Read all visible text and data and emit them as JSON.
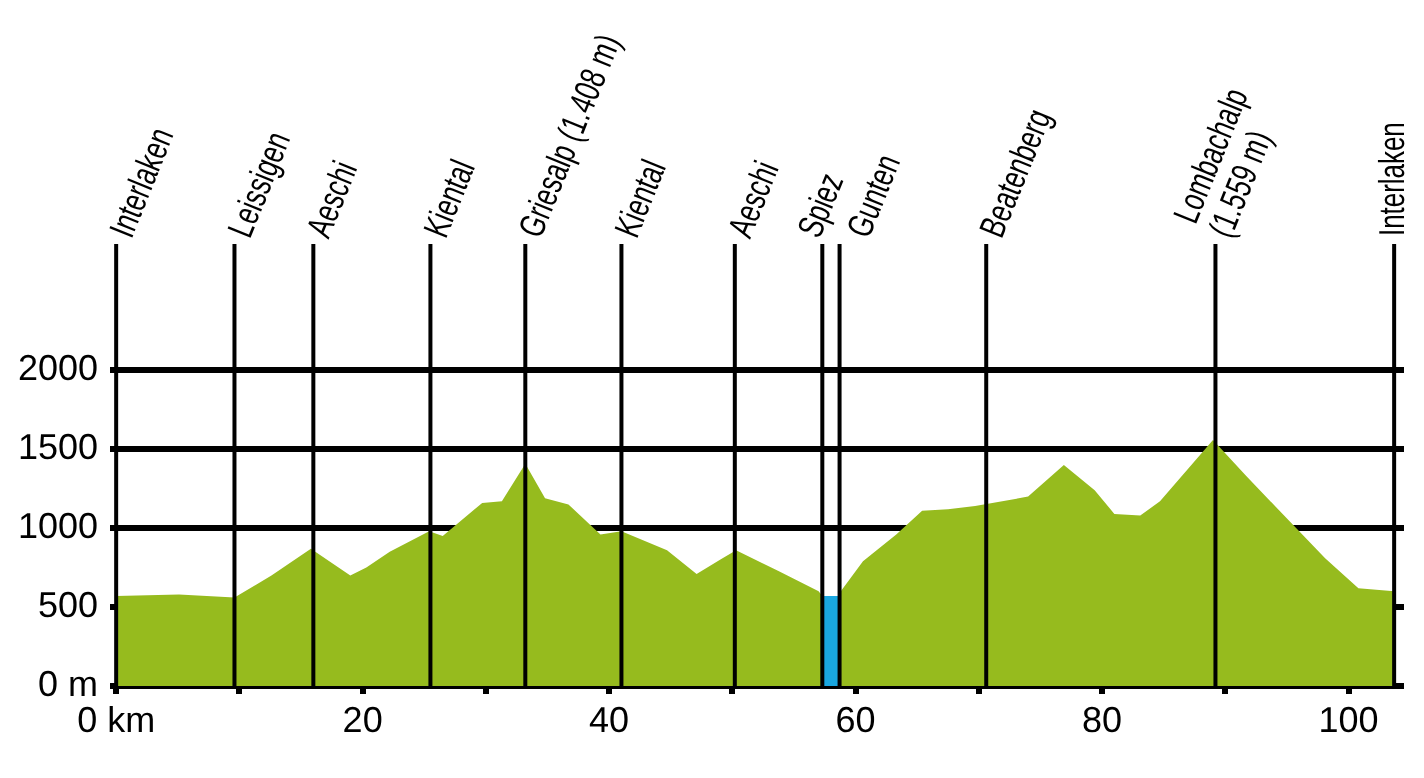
{
  "chart_data": {
    "type": "area",
    "xlim": [
      -0.5,
      104.5
    ],
    "xticks": [
      {
        "value": 0,
        "label": "0 km"
      },
      {
        "value": 10,
        "label": null
      },
      20,
      {
        "value": 30,
        "label": null
      },
      40,
      {
        "value": 50,
        "label": null
      },
      60,
      {
        "value": 70,
        "label": null
      },
      80,
      {
        "value": 90,
        "label": null
      },
      100
    ],
    "ylim": [
      0,
      2800
    ],
    "yticks": [
      {
        "value": 0,
        "label": "0 m"
      },
      500,
      1000,
      1500,
      2000
    ],
    "grid": "y",
    "legend": false,
    "series": [
      {
        "color": "#96bb1e",
        "x": [
          0,
          5.1,
          9.6,
          12.6,
          15.8,
          19,
          20.3,
          22.2,
          25.4,
          26.5,
          29.7,
          31.3,
          33.2,
          34.8,
          36.7,
          39.3,
          41,
          44.7,
          47.1,
          49,
          50.3,
          53.7,
          57,
          57.3,
          58,
          58.7,
          58.8,
          60.6,
          63.3,
          65.4,
          67.5,
          69.7,
          74,
          76.9,
          79.4,
          81,
          83.1,
          84.7,
          89,
          91.7,
          94.4,
          98.1,
          100.8,
          103.7
        ],
        "values": [
          570,
          580,
          560,
          700,
          870,
          700,
          750,
          850,
          980,
          950,
          1160,
          1170,
          1408,
          1190,
          1150,
          960,
          980,
          860,
          710,
          800,
          860,
          730,
          600,
          570,
          null,
          570,
          600,
          790,
          960,
          1110,
          1120,
          1140,
          1200,
          1400,
          1240,
          1090,
          1080,
          1170,
          1559,
          1330,
          1110,
          810,
          620,
          600
        ]
      },
      {
        "color": "#1aa7e0",
        "x": [
          57.3,
          58.7
        ],
        "values": [
          570,
          570
        ]
      }
    ],
    "ref_lines": [
      {
        "axis": "x",
        "value": 0,
        "label": "Interlaken",
        "color": "#000000"
      },
      {
        "axis": "x",
        "value": 9.6,
        "label": "Leissigen",
        "color": "#000000"
      },
      {
        "axis": "x",
        "value": 16,
        "label": "Aeschi",
        "color": "#000000"
      },
      {
        "axis": "x",
        "value": 25.5,
        "label": "Kiental",
        "color": "#000000"
      },
      {
        "axis": "x",
        "value": 33.2,
        "label": "Griesalp (1.408 m)",
        "color": "#000000"
      },
      {
        "axis": "x",
        "value": 41,
        "label": "Kiental",
        "color": "#000000"
      },
      {
        "axis": "x",
        "value": 50.2,
        "label": "Aeschi",
        "color": "#000000"
      },
      {
        "axis": "x",
        "value": 57.3,
        "label": "Spiez",
        "color": "#000000"
      },
      {
        "axis": "x",
        "value": 58.7,
        "label": "Gunten",
        "color": "#000000"
      },
      {
        "axis": "x",
        "value": 70.6,
        "label": "Beatenberg",
        "color": "#000000"
      },
      {
        "axis": "x",
        "value": 89.2,
        "label": "Lombachalp\n(1.559 m)",
        "color": "#000000"
      },
      {
        "axis": "x",
        "value": 103.7,
        "label": "Interlaken",
        "color": "#000000"
      }
    ]
  }
}
